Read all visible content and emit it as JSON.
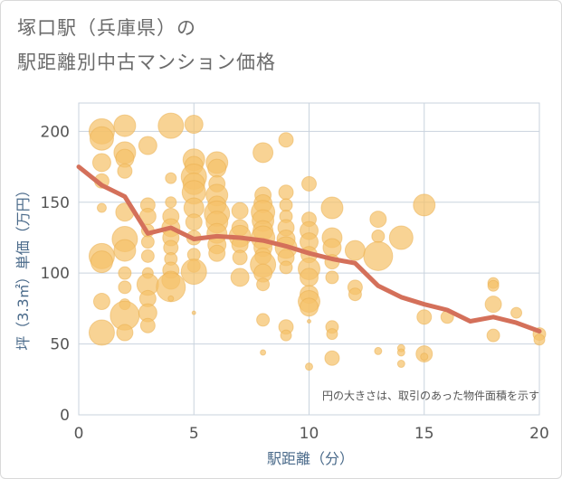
{
  "header": {
    "title_line1": "塚口駅（兵庫県）の",
    "title_line2": "駅距離別中古マンション価格"
  },
  "chart_data": {
    "type": "scatter",
    "title": "塚口駅（兵庫県）の駅距離別中古マンション価格",
    "xlabel": "駅距離（分）",
    "ylabel": "坪（3.3㎡）単価（万円）",
    "xlim": [
      0,
      20
    ],
    "ylim": [
      0,
      220
    ],
    "xticks": [
      0,
      5,
      10,
      15,
      20
    ],
    "yticks": [
      0,
      50,
      100,
      150,
      200
    ],
    "grid": true,
    "annotation": "円の大きさは、取引のあった物件面積を示す",
    "colors": {
      "bubble": "#f5c26b",
      "bubble_stroke": "#e9ad4c",
      "trend": "#d4705a",
      "grid": "#c9d3de"
    },
    "bubbles": [
      {
        "x": 1,
        "y": 200,
        "s": 14
      },
      {
        "x": 1,
        "y": 195,
        "s": 13
      },
      {
        "x": 1,
        "y": 178,
        "s": 10
      },
      {
        "x": 1,
        "y": 165,
        "s": 8
      },
      {
        "x": 1,
        "y": 146,
        "s": 5
      },
      {
        "x": 1,
        "y": 112,
        "s": 14
      },
      {
        "x": 1,
        "y": 108,
        "s": 12
      },
      {
        "x": 1,
        "y": 80,
        "s": 9
      },
      {
        "x": 1,
        "y": 58,
        "s": 14
      },
      {
        "x": 2,
        "y": 204,
        "s": 12
      },
      {
        "x": 2,
        "y": 185,
        "s": 12
      },
      {
        "x": 2,
        "y": 181,
        "s": 10
      },
      {
        "x": 2,
        "y": 172,
        "s": 8
      },
      {
        "x": 2,
        "y": 143,
        "s": 10
      },
      {
        "x": 2,
        "y": 124,
        "s": 14
      },
      {
        "x": 2,
        "y": 116,
        "s": 12
      },
      {
        "x": 2,
        "y": 100,
        "s": 7
      },
      {
        "x": 2,
        "y": 90,
        "s": 7
      },
      {
        "x": 2,
        "y": 78,
        "s": 6
      },
      {
        "x": 2,
        "y": 70,
        "s": 16
      },
      {
        "x": 2,
        "y": 58,
        "s": 9
      },
      {
        "x": 3,
        "y": 190,
        "s": 10
      },
      {
        "x": 3,
        "y": 148,
        "s": 8
      },
      {
        "x": 3,
        "y": 140,
        "s": 9
      },
      {
        "x": 3,
        "y": 130,
        "s": 7
      },
      {
        "x": 3,
        "y": 122,
        "s": 7
      },
      {
        "x": 3,
        "y": 112,
        "s": 7
      },
      {
        "x": 3,
        "y": 100,
        "s": 6
      },
      {
        "x": 3,
        "y": 92,
        "s": 12
      },
      {
        "x": 3,
        "y": 82,
        "s": 9
      },
      {
        "x": 3,
        "y": 72,
        "s": 10
      },
      {
        "x": 3,
        "y": 63,
        "s": 8
      },
      {
        "x": 4,
        "y": 204,
        "s": 14
      },
      {
        "x": 4,
        "y": 167,
        "s": 6
      },
      {
        "x": 4,
        "y": 150,
        "s": 6
      },
      {
        "x": 4,
        "y": 140,
        "s": 9
      },
      {
        "x": 4,
        "y": 132,
        "s": 10
      },
      {
        "x": 4,
        "y": 125,
        "s": 9
      },
      {
        "x": 4,
        "y": 118,
        "s": 8
      },
      {
        "x": 4,
        "y": 110,
        "s": 7
      },
      {
        "x": 4,
        "y": 102,
        "s": 9
      },
      {
        "x": 4,
        "y": 95,
        "s": 10
      },
      {
        "x": 4,
        "y": 90,
        "s": 16
      },
      {
        "x": 4,
        "y": 82,
        "s": 3
      },
      {
        "x": 5,
        "y": 205,
        "s": 10
      },
      {
        "x": 5,
        "y": 180,
        "s": 12
      },
      {
        "x": 5,
        "y": 176,
        "s": 10
      },
      {
        "x": 5,
        "y": 168,
        "s": 14
      },
      {
        "x": 5,
        "y": 163,
        "s": 12
      },
      {
        "x": 5,
        "y": 157,
        "s": 13
      },
      {
        "x": 5,
        "y": 146,
        "s": 11
      },
      {
        "x": 5,
        "y": 136,
        "s": 9
      },
      {
        "x": 5,
        "y": 125,
        "s": 8
      },
      {
        "x": 5,
        "y": 113,
        "s": 7
      },
      {
        "x": 5,
        "y": 105,
        "s": 7
      },
      {
        "x": 5,
        "y": 101,
        "s": 14
      },
      {
        "x": 5,
        "y": 72,
        "s": 2
      },
      {
        "x": 6,
        "y": 178,
        "s": 12
      },
      {
        "x": 6,
        "y": 174,
        "s": 10
      },
      {
        "x": 6,
        "y": 163,
        "s": 9
      },
      {
        "x": 6,
        "y": 155,
        "s": 12
      },
      {
        "x": 6,
        "y": 148,
        "s": 10
      },
      {
        "x": 6,
        "y": 142,
        "s": 14
      },
      {
        "x": 6,
        "y": 136,
        "s": 12
      },
      {
        "x": 6,
        "y": 128,
        "s": 11
      },
      {
        "x": 6,
        "y": 120,
        "s": 10
      },
      {
        "x": 6,
        "y": 114,
        "s": 9
      },
      {
        "x": 7,
        "y": 144,
        "s": 9
      },
      {
        "x": 7,
        "y": 132,
        "s": 9
      },
      {
        "x": 7,
        "y": 126,
        "s": 12
      },
      {
        "x": 7,
        "y": 120,
        "s": 9
      },
      {
        "x": 7,
        "y": 111,
        "s": 8
      },
      {
        "x": 7,
        "y": 97,
        "s": 10
      },
      {
        "x": 8,
        "y": 185,
        "s": 11
      },
      {
        "x": 8,
        "y": 155,
        "s": 9
      },
      {
        "x": 8,
        "y": 149,
        "s": 10
      },
      {
        "x": 8,
        "y": 143,
        "s": 13
      },
      {
        "x": 8,
        "y": 137,
        "s": 12
      },
      {
        "x": 8,
        "y": 130,
        "s": 11
      },
      {
        "x": 8,
        "y": 125,
        "s": 13
      },
      {
        "x": 8,
        "y": 118,
        "s": 10
      },
      {
        "x": 8,
        "y": 112,
        "s": 9
      },
      {
        "x": 8,
        "y": 106,
        "s": 14
      },
      {
        "x": 8,
        "y": 100,
        "s": 10
      },
      {
        "x": 8,
        "y": 92,
        "s": 7
      },
      {
        "x": 8,
        "y": 67,
        "s": 7
      },
      {
        "x": 8,
        "y": 44,
        "s": 3
      },
      {
        "x": 9,
        "y": 194,
        "s": 8
      },
      {
        "x": 9,
        "y": 157,
        "s": 8
      },
      {
        "x": 9,
        "y": 148,
        "s": 7
      },
      {
        "x": 9,
        "y": 140,
        "s": 7
      },
      {
        "x": 9,
        "y": 132,
        "s": 9
      },
      {
        "x": 9,
        "y": 124,
        "s": 10
      },
      {
        "x": 9,
        "y": 118,
        "s": 12
      },
      {
        "x": 9,
        "y": 111,
        "s": 9
      },
      {
        "x": 9,
        "y": 104,
        "s": 7
      },
      {
        "x": 9,
        "y": 62,
        "s": 8
      },
      {
        "x": 9,
        "y": 56,
        "s": 6
      },
      {
        "x": 10,
        "y": 163,
        "s": 8
      },
      {
        "x": 10,
        "y": 138,
        "s": 8
      },
      {
        "x": 10,
        "y": 130,
        "s": 10
      },
      {
        "x": 10,
        "y": 122,
        "s": 10
      },
      {
        "x": 10,
        "y": 113,
        "s": 9
      },
      {
        "x": 10,
        "y": 103,
        "s": 12
      },
      {
        "x": 10,
        "y": 97,
        "s": 10
      },
      {
        "x": 10,
        "y": 85,
        "s": 10
      },
      {
        "x": 10,
        "y": 80,
        "s": 12
      },
      {
        "x": 10,
        "y": 76,
        "s": 10
      },
      {
        "x": 10,
        "y": 66,
        "s": 2
      },
      {
        "x": 10,
        "y": 34,
        "s": 4
      },
      {
        "x": 11,
        "y": 146,
        "s": 12
      },
      {
        "x": 11,
        "y": 125,
        "s": 11
      },
      {
        "x": 11,
        "y": 118,
        "s": 10
      },
      {
        "x": 11,
        "y": 108,
        "s": 8
      },
      {
        "x": 11,
        "y": 97,
        "s": 7
      },
      {
        "x": 11,
        "y": 62,
        "s": 7
      },
      {
        "x": 11,
        "y": 57,
        "s": 6
      },
      {
        "x": 11,
        "y": 40,
        "s": 8
      },
      {
        "x": 12,
        "y": 116,
        "s": 11
      },
      {
        "x": 12,
        "y": 90,
        "s": 8
      },
      {
        "x": 12,
        "y": 85,
        "s": 7
      },
      {
        "x": 13,
        "y": 138,
        "s": 9
      },
      {
        "x": 13,
        "y": 126,
        "s": 7
      },
      {
        "x": 13,
        "y": 112,
        "s": 16
      },
      {
        "x": 13,
        "y": 45,
        "s": 4
      },
      {
        "x": 14,
        "y": 125,
        "s": 13
      },
      {
        "x": 14,
        "y": 47,
        "s": 4
      },
      {
        "x": 14,
        "y": 44,
        "s": 4
      },
      {
        "x": 14,
        "y": 36,
        "s": 4
      },
      {
        "x": 15,
        "y": 148,
        "s": 12
      },
      {
        "x": 15,
        "y": 69,
        "s": 8
      },
      {
        "x": 15,
        "y": 43,
        "s": 9
      },
      {
        "x": 15,
        "y": 41,
        "s": 4
      },
      {
        "x": 16,
        "y": 69,
        "s": 7
      },
      {
        "x": 18,
        "y": 93,
        "s": 6
      },
      {
        "x": 18,
        "y": 91,
        "s": 6
      },
      {
        "x": 18,
        "y": 78,
        "s": 9
      },
      {
        "x": 18,
        "y": 56,
        "s": 7
      },
      {
        "x": 19,
        "y": 72,
        "s": 6
      },
      {
        "x": 20,
        "y": 57,
        "s": 7
      },
      {
        "x": 20,
        "y": 53,
        "s": 6
      }
    ],
    "series": [
      {
        "x": [
          0,
          1,
          2,
          3,
          4,
          5,
          6,
          7,
          8,
          9,
          10,
          11,
          12,
          13,
          14,
          15,
          16,
          17,
          18,
          19,
          20
        ],
        "values": [
          175,
          162,
          154,
          128,
          132,
          124,
          126,
          125,
          123,
          119,
          114,
          110,
          107,
          91,
          83,
          78,
          74,
          66,
          69,
          65,
          59
        ]
      }
    ]
  }
}
